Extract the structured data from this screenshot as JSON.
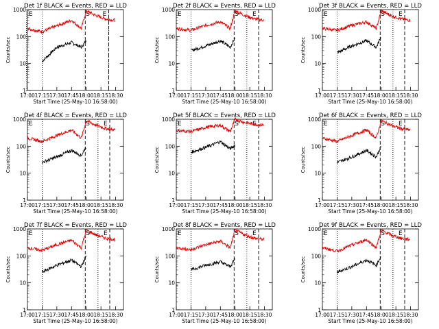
{
  "figure": {
    "ylabel": "Counts/sec",
    "xlabel": "Start Time (25-May-10 16:58:00)",
    "x_ticks": [
      "17:00",
      "17:15",
      "17:30",
      "17:45",
      "18:00",
      "18:15",
      "18:30"
    ],
    "y_ticks": [
      "1",
      "10",
      "100",
      "1000"
    ],
    "markers": {
      "start": "S",
      "end": "E",
      "other": "E"
    },
    "colors": {
      "events": "#000000",
      "lld": "#e00000"
    }
  },
  "chart_data": [
    {
      "type": "line",
      "title": "Det 1f BLACK = Events, RED = LLD",
      "xlabel": "Start Time (25-May-10 16:58:00)",
      "ylabel": "Counts/sec",
      "ylim": [
        1,
        1000
      ],
      "log_y": true,
      "dotted_x": [
        "16:59",
        "17:15",
        "18:23"
      ],
      "dashed_x": [
        "17:59",
        "18:23"
      ],
      "series": [
        {
          "name": "Events",
          "color": "#000000",
          "x": [
            "17:15",
            "17:30",
            "17:45",
            "17:55",
            "18:00"
          ],
          "y": [
            12,
            40,
            60,
            40,
            70
          ]
        },
        {
          "name": "LLD",
          "color": "#e00000",
          "x": [
            "17:00",
            "17:15",
            "17:30",
            "17:45",
            "17:55",
            "18:00",
            "18:10",
            "18:20",
            "18:30"
          ],
          "y": [
            200,
            150,
            250,
            400,
            200,
            900,
            600,
            450,
            400
          ]
        }
      ]
    },
    {
      "type": "line",
      "title": "Det 2f BLACK = Events, RED = LLD",
      "xlabel": "Start Time (25-May-10 16:58:00)",
      "ylabel": "Counts/sec",
      "ylim": [
        1,
        1000
      ],
      "log_y": true,
      "dotted_x": [
        "17:15",
        "18:12"
      ],
      "dashed_x": [
        "17:59",
        "18:24"
      ],
      "series": [
        {
          "name": "Events",
          "color": "#000000",
          "x": [
            "17:15",
            "17:30",
            "17:45",
            "17:55",
            "18:00"
          ],
          "y": [
            30,
            45,
            70,
            40,
            90
          ]
        },
        {
          "name": "LLD",
          "color": "#e00000",
          "x": [
            "17:00",
            "17:15",
            "17:30",
            "17:45",
            "17:55",
            "18:00",
            "18:10",
            "18:20",
            "18:30"
          ],
          "y": [
            200,
            170,
            260,
            350,
            200,
            900,
            600,
            450,
            400
          ]
        }
      ]
    },
    {
      "type": "line",
      "title": "Det 3f BLACK = Events, RED = LLD",
      "xlabel": "Start Time (25-May-10 16:58:00)",
      "ylabel": "Counts/sec",
      "ylim": [
        1,
        1000
      ],
      "log_y": true,
      "dotted_x": [
        "17:15",
        "18:12"
      ],
      "dashed_x": [
        "17:59",
        "18:24"
      ],
      "series": [
        {
          "name": "Events",
          "color": "#000000",
          "x": [
            "17:15",
            "17:30",
            "17:45",
            "17:55",
            "18:00"
          ],
          "y": [
            25,
            45,
            70,
            40,
            100
          ]
        },
        {
          "name": "LLD",
          "color": "#e00000",
          "x": [
            "17:00",
            "17:15",
            "17:30",
            "17:45",
            "17:55",
            "18:00",
            "18:10",
            "18:20",
            "18:30"
          ],
          "y": [
            200,
            170,
            260,
            350,
            200,
            900,
            600,
            450,
            400
          ]
        }
      ]
    },
    {
      "type": "line",
      "title": "Det 4f BLACK = Events, RED = LLD",
      "xlabel": "Start Time (25-May-10 16:58:00)",
      "ylabel": "Counts/sec",
      "ylim": [
        1,
        1000
      ],
      "log_y": true,
      "dotted_x": [
        "17:15",
        "18:12"
      ],
      "dashed_x": [
        "17:59",
        "18:24"
      ],
      "series": [
        {
          "name": "Events",
          "color": "#000000",
          "x": [
            "17:15",
            "17:30",
            "17:45",
            "17:55",
            "18:00"
          ],
          "y": [
            25,
            40,
            70,
            45,
            100
          ]
        },
        {
          "name": "LLD",
          "color": "#e00000",
          "x": [
            "17:00",
            "17:15",
            "17:30",
            "17:45",
            "17:55",
            "18:00",
            "18:10",
            "18:20",
            "18:30"
          ],
          "y": [
            200,
            150,
            250,
            400,
            200,
            900,
            600,
            450,
            400
          ]
        }
      ]
    },
    {
      "type": "line",
      "title": "Det 5f BLACK = Events, RED = LLD",
      "xlabel": "Start Time (25-May-10 16:58:00)",
      "ylabel": "Counts/sec",
      "ylim": [
        1,
        1000
      ],
      "log_y": true,
      "dotted_x": [
        "17:15",
        "18:12"
      ],
      "dashed_x": [
        "17:59",
        "18:24"
      ],
      "series": [
        {
          "name": "Events",
          "color": "#000000",
          "x": [
            "17:15",
            "17:30",
            "17:45",
            "17:55",
            "18:00"
          ],
          "y": [
            60,
            90,
            150,
            80,
            110
          ]
        },
        {
          "name": "LLD",
          "color": "#e00000",
          "x": [
            "17:00",
            "17:15",
            "17:30",
            "17:45",
            "17:55",
            "18:00",
            "18:10",
            "18:20",
            "18:30"
          ],
          "y": [
            380,
            350,
            500,
            600,
            350,
            1000,
            750,
            650,
            600
          ]
        }
      ]
    },
    {
      "type": "line",
      "title": "Det 6f BLACK = Events, RED = LLD",
      "xlabel": "Start Time (25-May-10 16:58:00)",
      "ylabel": "Counts/sec",
      "ylim": [
        1,
        1000
      ],
      "log_y": true,
      "dotted_x": [
        "17:15",
        "18:12"
      ],
      "dashed_x": [
        "17:59",
        "18:24"
      ],
      "series": [
        {
          "name": "Events",
          "color": "#000000",
          "x": [
            "17:15",
            "17:30",
            "17:45",
            "17:55",
            "18:00"
          ],
          "y": [
            25,
            40,
            70,
            40,
            100
          ]
        },
        {
          "name": "LLD",
          "color": "#e00000",
          "x": [
            "17:00",
            "17:15",
            "17:30",
            "17:45",
            "17:55",
            "18:00",
            "18:10",
            "18:20",
            "18:30"
          ],
          "y": [
            200,
            150,
            250,
            400,
            200,
            900,
            600,
            450,
            400
          ]
        }
      ]
    },
    {
      "type": "line",
      "title": "Det 7f BLACK = Events, RED = LLD",
      "xlabel": "Start Time (25-May-10 16:58:00)",
      "ylabel": "Counts/sec",
      "ylim": [
        1,
        1000
      ],
      "log_y": true,
      "dotted_x": [
        "17:15",
        "18:12"
      ],
      "dashed_x": [
        "17:59",
        "18:24"
      ],
      "series": [
        {
          "name": "Events",
          "color": "#000000",
          "x": [
            "17:15",
            "17:30",
            "17:45",
            "17:55",
            "18:00"
          ],
          "y": [
            25,
            45,
            70,
            40,
            100
          ]
        },
        {
          "name": "LLD",
          "color": "#e00000",
          "x": [
            "17:00",
            "17:15",
            "17:30",
            "17:45",
            "17:55",
            "18:00",
            "18:10",
            "18:20",
            "18:30"
          ],
          "y": [
            200,
            160,
            260,
            380,
            200,
            900,
            600,
            450,
            400
          ]
        }
      ]
    },
    {
      "type": "line",
      "title": "Det 8f BLACK = Events, RED = LLD",
      "xlabel": "Start Time (25-May-10 16:58:00)",
      "ylabel": "Counts/sec",
      "ylim": [
        1,
        1000
      ],
      "log_y": true,
      "dotted_x": [
        "17:15",
        "18:12"
      ],
      "dashed_x": [
        "17:59",
        "18:24"
      ],
      "series": [
        {
          "name": "Events",
          "color": "#000000",
          "x": [
            "17:15",
            "17:30",
            "17:45",
            "17:55",
            "18:00"
          ],
          "y": [
            30,
            45,
            60,
            40,
            80
          ]
        },
        {
          "name": "LLD",
          "color": "#e00000",
          "x": [
            "17:00",
            "17:15",
            "17:30",
            "17:45",
            "17:55",
            "18:00",
            "18:10",
            "18:20",
            "18:30"
          ],
          "y": [
            200,
            170,
            260,
            350,
            200,
            900,
            600,
            450,
            400
          ]
        }
      ]
    },
    {
      "type": "line",
      "title": "Det 9f BLACK = Events, RED = LLD",
      "xlabel": "Start Time (25-May-10 16:58:00)",
      "ylabel": "Counts/sec",
      "ylim": [
        1,
        1000
      ],
      "log_y": true,
      "dotted_x": [
        "17:15",
        "18:12"
      ],
      "dashed_x": [
        "17:59",
        "18:24"
      ],
      "series": [
        {
          "name": "Events",
          "color": "#000000",
          "x": [
            "17:15",
            "17:30",
            "17:45",
            "17:55",
            "18:00"
          ],
          "y": [
            25,
            40,
            70,
            45,
            100
          ]
        },
        {
          "name": "LLD",
          "color": "#e00000",
          "x": [
            "17:00",
            "17:15",
            "17:30",
            "17:45",
            "17:55",
            "18:00",
            "18:10",
            "18:20",
            "18:30"
          ],
          "y": [
            200,
            150,
            250,
            400,
            200,
            900,
            600,
            450,
            400
          ]
        }
      ]
    }
  ]
}
